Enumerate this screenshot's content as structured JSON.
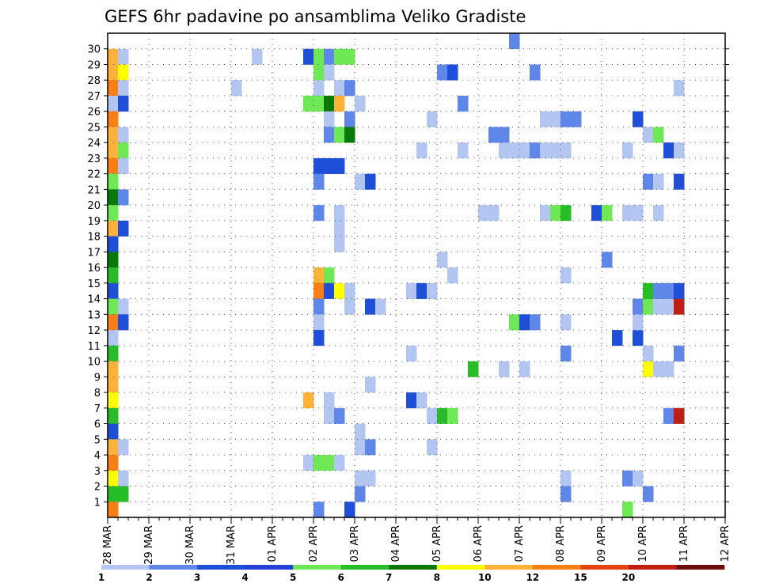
{
  "chart_data": {
    "type": "heatmap",
    "title": "GEFS 6hr padavine po ansamblima Veliko Gradiste",
    "xlabel": "",
    "ylabel": "",
    "x_tick_labels": [
      "28 MAR",
      "29 MAR",
      "30 MAR",
      "31 MAR",
      "01 APR",
      "02 APR",
      "03 APR",
      "04 APR",
      "05 APR",
      "06 APR",
      "07 APR",
      "08 APR",
      "09 APR",
      "10 APR",
      "11 APR",
      "12 APR"
    ],
    "y_tick_labels": [
      "1",
      "2",
      "3",
      "4",
      "5",
      "6",
      "7",
      "8",
      "9",
      "10",
      "11",
      "12",
      "13",
      "14",
      "15",
      "16",
      "17",
      "18",
      "19",
      "20",
      "21",
      "22",
      "23",
      "24",
      "25",
      "26",
      "27",
      "28",
      "29",
      "30"
    ],
    "grid": true,
    "legend": {
      "placement": "bottom",
      "colors": [
        "#b3c6f2",
        "#5f87ea",
        "#1f4fd8",
        "#2440d8",
        "#6ee855",
        "#27bd27",
        "#087808",
        "#ffff00",
        "#ffb23a",
        "#f97e14",
        "#e54311",
        "#c01e10",
        "#6e0c0c"
      ],
      "labels": [
        "1",
        "2",
        "3",
        "4",
        "5",
        "6",
        "7",
        "8",
        "10",
        "12",
        "15",
        "20",
        ""
      ]
    },
    "cells_note_columns": "x = 6-hour step index from 28 MAR 00Z, y = ensemble member, v = color class index",
    "cells": [
      {
        "x": 0,
        "y": 29,
        "v": 8
      },
      {
        "x": 1,
        "y": 29,
        "v": 0
      },
      {
        "x": 0,
        "y": 28,
        "v": 8
      },
      {
        "x": 1,
        "y": 28,
        "v": 7
      },
      {
        "x": 0,
        "y": 27,
        "v": 9
      },
      {
        "x": 1,
        "y": 27,
        "v": 0
      },
      {
        "x": 0,
        "y": 26,
        "v": 0
      },
      {
        "x": 1,
        "y": 26,
        "v": 2
      },
      {
        "x": 0,
        "y": 25,
        "v": 9
      },
      {
        "x": 0,
        "y": 24,
        "v": 8
      },
      {
        "x": 1,
        "y": 24,
        "v": 0
      },
      {
        "x": 0,
        "y": 23,
        "v": 8
      },
      {
        "x": 1,
        "y": 23,
        "v": 4
      },
      {
        "x": 0,
        "y": 22,
        "v": 9
      },
      {
        "x": 1,
        "y": 22,
        "v": 0
      },
      {
        "x": 0,
        "y": 21,
        "v": 4
      },
      {
        "x": 0,
        "y": 20,
        "v": 6
      },
      {
        "x": 1,
        "y": 20,
        "v": 1
      },
      {
        "x": 0,
        "y": 19,
        "v": 4
      },
      {
        "x": 0,
        "y": 18,
        "v": 8
      },
      {
        "x": 1,
        "y": 18,
        "v": 2
      },
      {
        "x": 0,
        "y": 17,
        "v": 2
      },
      {
        "x": 0,
        "y": 16,
        "v": 6
      },
      {
        "x": 0,
        "y": 15,
        "v": 5
      },
      {
        "x": 0,
        "y": 14,
        "v": 2
      },
      {
        "x": 0,
        "y": 13,
        "v": 4
      },
      {
        "x": 1,
        "y": 13,
        "v": 0
      },
      {
        "x": 0,
        "y": 12,
        "v": 9
      },
      {
        "x": 1,
        "y": 12,
        "v": 2
      },
      {
        "x": 0,
        "y": 11,
        "v": 0
      },
      {
        "x": 0,
        "y": 10,
        "v": 5
      },
      {
        "x": 0,
        "y": 9,
        "v": 8
      },
      {
        "x": 0,
        "y": 8,
        "v": 8
      },
      {
        "x": 0,
        "y": 7,
        "v": 7
      },
      {
        "x": 0,
        "y": 6,
        "v": 5
      },
      {
        "x": 0,
        "y": 5,
        "v": 2
      },
      {
        "x": 0,
        "y": 4,
        "v": 8
      },
      {
        "x": 1,
        "y": 4,
        "v": 0
      },
      {
        "x": 0,
        "y": 3,
        "v": 9
      },
      {
        "x": 0,
        "y": 2,
        "v": 7
      },
      {
        "x": 1,
        "y": 2,
        "v": 0
      },
      {
        "x": 0,
        "y": 1,
        "v": 5
      },
      {
        "x": 1,
        "y": 1,
        "v": 5
      },
      {
        "x": 0,
        "y": 0,
        "v": 9
      },
      {
        "x": 14,
        "y": 29,
        "v": 0
      },
      {
        "x": 12,
        "y": 27,
        "v": 0
      },
      {
        "x": 19,
        "y": 29,
        "v": 2
      },
      {
        "x": 20,
        "y": 29,
        "v": 4
      },
      {
        "x": 21,
        "y": 29,
        "v": 1
      },
      {
        "x": 22,
        "y": 29,
        "v": 4
      },
      {
        "x": 23,
        "y": 29,
        "v": 4
      },
      {
        "x": 20,
        "y": 28,
        "v": 4
      },
      {
        "x": 21,
        "y": 28,
        "v": 0
      },
      {
        "x": 20,
        "y": 27,
        "v": 0
      },
      {
        "x": 22,
        "y": 27,
        "v": 0
      },
      {
        "x": 23,
        "y": 27,
        "v": 1
      },
      {
        "x": 19,
        "y": 26,
        "v": 4
      },
      {
        "x": 20,
        "y": 26,
        "v": 4
      },
      {
        "x": 21,
        "y": 26,
        "v": 6
      },
      {
        "x": 22,
        "y": 26,
        "v": 8
      },
      {
        "x": 24,
        "y": 26,
        "v": 0
      },
      {
        "x": 21,
        "y": 25,
        "v": 0
      },
      {
        "x": 23,
        "y": 25,
        "v": 1
      },
      {
        "x": 21,
        "y": 24,
        "v": 1
      },
      {
        "x": 22,
        "y": 24,
        "v": 4
      },
      {
        "x": 23,
        "y": 24,
        "v": 6
      },
      {
        "x": 20,
        "y": 22,
        "v": 2
      },
      {
        "x": 21,
        "y": 22,
        "v": 2
      },
      {
        "x": 22,
        "y": 22,
        "v": 2
      },
      {
        "x": 20,
        "y": 21,
        "v": 1
      },
      {
        "x": 24,
        "y": 21,
        "v": 0
      },
      {
        "x": 25,
        "y": 21,
        "v": 2
      },
      {
        "x": 20,
        "y": 19,
        "v": 1
      },
      {
        "x": 22,
        "y": 19,
        "v": 0
      },
      {
        "x": 22,
        "y": 18,
        "v": 0
      },
      {
        "x": 22,
        "y": 17,
        "v": 0
      },
      {
        "x": 20,
        "y": 15,
        "v": 8
      },
      {
        "x": 21,
        "y": 15,
        "v": 4
      },
      {
        "x": 20,
        "y": 14,
        "v": 9
      },
      {
        "x": 21,
        "y": 14,
        "v": 2
      },
      {
        "x": 22,
        "y": 14,
        "v": 7
      },
      {
        "x": 23,
        "y": 14,
        "v": 0
      },
      {
        "x": 20,
        "y": 13,
        "v": 1
      },
      {
        "x": 23,
        "y": 13,
        "v": 0
      },
      {
        "x": 25,
        "y": 13,
        "v": 2
      },
      {
        "x": 26,
        "y": 13,
        "v": 0
      },
      {
        "x": 20,
        "y": 12,
        "v": 0
      },
      {
        "x": 20,
        "y": 11,
        "v": 2
      },
      {
        "x": 25,
        "y": 8,
        "v": 0
      },
      {
        "x": 19,
        "y": 7,
        "v": 8
      },
      {
        "x": 21,
        "y": 7,
        "v": 0
      },
      {
        "x": 21,
        "y": 6,
        "v": 0
      },
      {
        "x": 22,
        "y": 6,
        "v": 1
      },
      {
        "x": 24,
        "y": 5,
        "v": 0
      },
      {
        "x": 24,
        "y": 4,
        "v": 0
      },
      {
        "x": 25,
        "y": 4,
        "v": 1
      },
      {
        "x": 19,
        "y": 3,
        "v": 0
      },
      {
        "x": 20,
        "y": 3,
        "v": 4
      },
      {
        "x": 21,
        "y": 3,
        "v": 4
      },
      {
        "x": 22,
        "y": 3,
        "v": 0
      },
      {
        "x": 24,
        "y": 2,
        "v": 0
      },
      {
        "x": 25,
        "y": 2,
        "v": 0
      },
      {
        "x": 24,
        "y": 1,
        "v": 1
      },
      {
        "x": 20,
        "y": 0,
        "v": 1
      },
      {
        "x": 23,
        "y": 0,
        "v": 2
      },
      {
        "x": 32,
        "y": 28,
        "v": 1
      },
      {
        "x": 33,
        "y": 28,
        "v": 2
      },
      {
        "x": 34,
        "y": 26,
        "v": 1
      },
      {
        "x": 31,
        "y": 25,
        "v": 0
      },
      {
        "x": 37,
        "y": 24,
        "v": 1
      },
      {
        "x": 38,
        "y": 24,
        "v": 1
      },
      {
        "x": 30,
        "y": 23,
        "v": 0
      },
      {
        "x": 34,
        "y": 23,
        "v": 0
      },
      {
        "x": 38,
        "y": 23,
        "v": 0
      },
      {
        "x": 39,
        "y": 23,
        "v": 0
      },
      {
        "x": 40,
        "y": 23,
        "v": 0
      },
      {
        "x": 41,
        "y": 23,
        "v": 1
      },
      {
        "x": 42,
        "y": 23,
        "v": 0
      },
      {
        "x": 43,
        "y": 23,
        "v": 0
      },
      {
        "x": 44,
        "y": 23,
        "v": 0
      },
      {
        "x": 36,
        "y": 19,
        "v": 0
      },
      {
        "x": 37,
        "y": 19,
        "v": 0
      },
      {
        "x": 42,
        "y": 19,
        "v": 0
      },
      {
        "x": 32,
        "y": 16,
        "v": 0
      },
      {
        "x": 33,
        "y": 15,
        "v": 0
      },
      {
        "x": 29,
        "y": 14,
        "v": 0
      },
      {
        "x": 30,
        "y": 14,
        "v": 2
      },
      {
        "x": 31,
        "y": 14,
        "v": 0
      },
      {
        "x": 29,
        "y": 10,
        "v": 0
      },
      {
        "x": 35,
        "y": 9,
        "v": 5
      },
      {
        "x": 38,
        "y": 9,
        "v": 0
      },
      {
        "x": 40,
        "y": 9,
        "v": 0
      },
      {
        "x": 29,
        "y": 7,
        "v": 2
      },
      {
        "x": 30,
        "y": 7,
        "v": 0
      },
      {
        "x": 31,
        "y": 6,
        "v": 0
      },
      {
        "x": 32,
        "y": 6,
        "v": 5
      },
      {
        "x": 33,
        "y": 6,
        "v": 4
      },
      {
        "x": 31,
        "y": 4,
        "v": 0
      },
      {
        "x": 39,
        "y": 30,
        "v": 1
      },
      {
        "x": 41,
        "y": 28,
        "v": 1
      },
      {
        "x": 39,
        "y": 12,
        "v": 4
      },
      {
        "x": 40,
        "y": 12,
        "v": 2
      },
      {
        "x": 41,
        "y": 12,
        "v": 1
      },
      {
        "x": 42,
        "y": 25,
        "v": 0
      },
      {
        "x": 43,
        "y": 25,
        "v": 0
      },
      {
        "x": 44,
        "y": 25,
        "v": 1
      },
      {
        "x": 45,
        "y": 25,
        "v": 1
      },
      {
        "x": 43,
        "y": 19,
        "v": 4
      },
      {
        "x": 44,
        "y": 19,
        "v": 5
      },
      {
        "x": 47,
        "y": 19,
        "v": 2
      },
      {
        "x": 48,
        "y": 19,
        "v": 4
      },
      {
        "x": 44,
        "y": 15,
        "v": 0
      },
      {
        "x": 44,
        "y": 10,
        "v": 1
      },
      {
        "x": 44,
        "y": 12,
        "v": 0
      },
      {
        "x": 44,
        "y": 2,
        "v": 0
      },
      {
        "x": 44,
        "y": 1,
        "v": 1
      },
      {
        "x": 48,
        "y": 16,
        "v": 1
      },
      {
        "x": 49,
        "y": 11,
        "v": 2
      },
      {
        "x": 51,
        "y": 25,
        "v": 2
      },
      {
        "x": 50,
        "y": 23,
        "v": 0
      },
      {
        "x": 50,
        "y": 19,
        "v": 0
      },
      {
        "x": 51,
        "y": 19,
        "v": 0
      },
      {
        "x": 53,
        "y": 19,
        "v": 0
      },
      {
        "x": 51,
        "y": 13,
        "v": 1
      },
      {
        "x": 52,
        "y": 13,
        "v": 4
      },
      {
        "x": 53,
        "y": 13,
        "v": 0
      },
      {
        "x": 54,
        "y": 13,
        "v": 0
      },
      {
        "x": 55,
        "y": 13,
        "v": 11
      },
      {
        "x": 51,
        "y": 11,
        "v": 2
      },
      {
        "x": 51,
        "y": 12,
        "v": 0
      },
      {
        "x": 52,
        "y": 14,
        "v": 5
      },
      {
        "x": 53,
        "y": 14,
        "v": 1
      },
      {
        "x": 54,
        "y": 14,
        "v": 1
      },
      {
        "x": 55,
        "y": 14,
        "v": 2
      },
      {
        "x": 52,
        "y": 24,
        "v": 0
      },
      {
        "x": 53,
        "y": 24,
        "v": 4
      },
      {
        "x": 54,
        "y": 23,
        "v": 2
      },
      {
        "x": 55,
        "y": 23,
        "v": 0
      },
      {
        "x": 52,
        "y": 21,
        "v": 1
      },
      {
        "x": 53,
        "y": 21,
        "v": 0
      },
      {
        "x": 55,
        "y": 21,
        "v": 2
      },
      {
        "x": 52,
        "y": 10,
        "v": 0
      },
      {
        "x": 55,
        "y": 10,
        "v": 1
      },
      {
        "x": 52,
        "y": 9,
        "v": 7
      },
      {
        "x": 53,
        "y": 9,
        "v": 0
      },
      {
        "x": 54,
        "y": 9,
        "v": 0
      },
      {
        "x": 55,
        "y": 27,
        "v": 0
      },
      {
        "x": 54,
        "y": 6,
        "v": 1
      },
      {
        "x": 55,
        "y": 6,
        "v": 11
      },
      {
        "x": 50,
        "y": 2,
        "v": 1
      },
      {
        "x": 51,
        "y": 2,
        "v": 0
      },
      {
        "x": 52,
        "y": 1,
        "v": 1
      },
      {
        "x": 50,
        "y": 0,
        "v": 4
      }
    ]
  }
}
